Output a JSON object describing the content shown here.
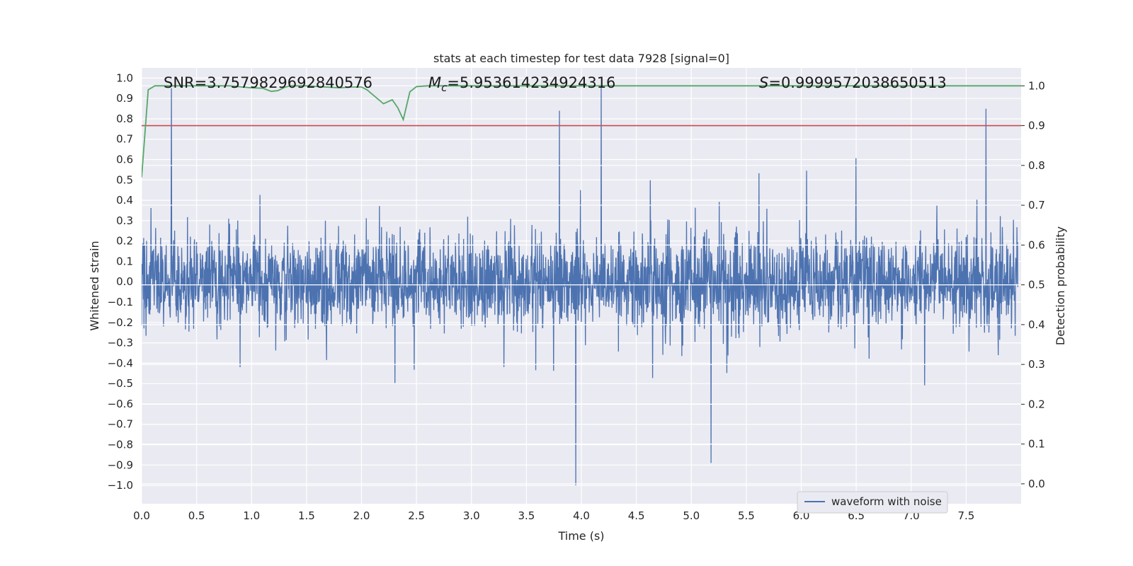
{
  "chart_data": {
    "type": "line",
    "title": "stats at each timestep for test data 7928 [signal=0]",
    "xlabel": "Time (s)",
    "ylabel_left": "Whitened strain",
    "ylabel_right": "Detection probability",
    "xlim": [
      0.0,
      8.0
    ],
    "ylim_left": [
      -1.09,
      1.05
    ],
    "ylim_right": [
      -0.05,
      1.045
    ],
    "x_ticks": [
      0.0,
      0.5,
      1.0,
      1.5,
      2.0,
      2.5,
      3.0,
      3.5,
      4.0,
      4.5,
      5.0,
      5.5,
      6.0,
      6.5,
      7.0,
      7.5
    ],
    "x_tick_labels": [
      "0.0",
      "0.5",
      "1.0",
      "1.5",
      "2.0",
      "2.5",
      "3.0",
      "3.5",
      "4.0",
      "4.5",
      "5.0",
      "5.5",
      "6.0",
      "6.5",
      "7.0",
      "7.5"
    ],
    "y_left_ticks": [
      1.0,
      0.9,
      0.8,
      0.7,
      0.6,
      0.5,
      0.4,
      0.3,
      0.2,
      0.1,
      0.0,
      -0.1,
      -0.2,
      -0.3,
      -0.4,
      -0.5,
      -0.6,
      -0.7,
      -0.8,
      -0.9,
      -1.0
    ],
    "y_left_tick_labels": [
      "1.0",
      "0.9",
      "0.8",
      "0.7",
      "0.6",
      "0.5",
      "0.4",
      "0.3",
      "0.2",
      "0.1",
      "0.0",
      "−0.1",
      "−0.2",
      "−0.3",
      "−0.4",
      "−0.5",
      "−0.6",
      "−0.7",
      "−0.8",
      "−0.9",
      "−1.0"
    ],
    "y_right_ticks": [
      1.0,
      0.9,
      0.8,
      0.7,
      0.6,
      0.5,
      0.4,
      0.3,
      0.2,
      0.1,
      0.0
    ],
    "y_right_tick_labels": [
      "1.0",
      "0.9",
      "0.8",
      "0.7",
      "0.6",
      "0.5",
      "0.4",
      "0.3",
      "0.2",
      "0.1",
      "0.0"
    ],
    "annotations": {
      "snr": "SNR=3.7579829692840576",
      "mc_symbol": "M",
      "mc_subscript": "c",
      "mc_value": "=5.953614234924316",
      "s_symbol": "S",
      "s_value": "=0.9999572038650513"
    },
    "threshold": {
      "axis": "right",
      "value": 0.9,
      "color": "#c44e52"
    },
    "series": [
      {
        "name": "waveform with noise",
        "axis": "left",
        "color": "#4c72b0",
        "envelope": "dense noise band, core about ±0.35, spikes reaching +0.96 and −1.0",
        "notable_peaks": [
          {
            "x": 0.27,
            "y": 0.95
          },
          {
            "x": 4.18,
            "y": 0.96
          },
          {
            "x": 3.95,
            "y": -1.0
          },
          {
            "x": 7.68,
            "y": 0.85
          },
          {
            "x": 3.8,
            "y": 0.84
          },
          {
            "x": 5.18,
            "y": -0.89
          }
        ]
      },
      {
        "name": "detection probability",
        "axis": "right",
        "color": "#55a868",
        "x": [
          0.0,
          0.06,
          0.12,
          0.3,
          0.8,
          1.0,
          1.1,
          1.18,
          1.24,
          1.3,
          1.35,
          1.5,
          1.8,
          1.9,
          2.0,
          2.05,
          2.2,
          2.28,
          2.33,
          2.38,
          2.44,
          2.5,
          2.6,
          3.0,
          8.0
        ],
        "y": [
          0.77,
          0.99,
          1.0,
          1.0,
          1.0,
          0.995,
          0.994,
          0.986,
          0.988,
          0.996,
          1.0,
          1.0,
          0.995,
          0.997,
          0.997,
          0.99,
          0.955,
          0.965,
          0.945,
          0.915,
          0.985,
          0.998,
          1.0,
          1.0,
          1.0
        ]
      }
    ],
    "legend": {
      "position": "lower-right",
      "entries": [
        "waveform with noise"
      ]
    }
  }
}
